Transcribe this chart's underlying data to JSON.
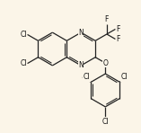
{
  "bg_color": "#fbf5e8",
  "line_color": "#222222",
  "line_width": 0.9,
  "font_size": 5.5,
  "label_color": "#111111",
  "xlim": [
    -1.8,
    4.2
  ],
  "ylim": [
    -4.2,
    2.0
  ]
}
